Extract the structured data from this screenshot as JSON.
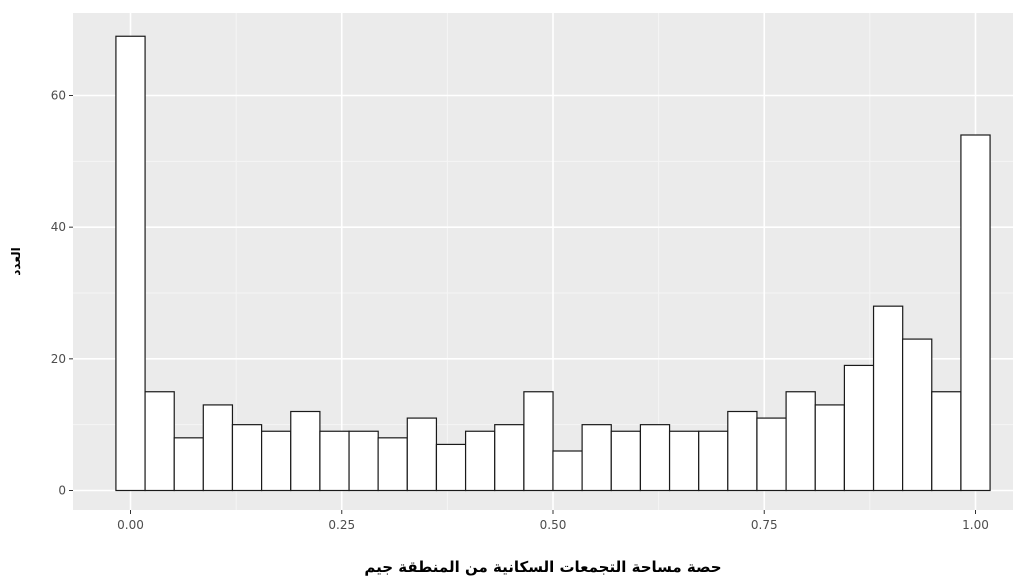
{
  "chart_data": {
    "type": "bar",
    "xlabel": "حصة مساحة التجمعات السكانية من المنطقة جيم",
    "ylabel": "العدد",
    "x_ticks": [
      "0.00",
      "0.25",
      "0.50",
      "0.75",
      "1.00"
    ],
    "y_ticks": [
      "0",
      "20",
      "40",
      "60"
    ],
    "xlim": [
      -0.025,
      1.025
    ],
    "ylim": [
      0,
      69
    ],
    "grid": true,
    "bin_width": 0.0345,
    "bin_centers": [
      0.0,
      0.0345,
      0.069,
      0.1034,
      0.1379,
      0.1724,
      0.2069,
      0.2414,
      0.2759,
      0.3103,
      0.3448,
      0.3793,
      0.4138,
      0.4483,
      0.4828,
      0.5172,
      0.5517,
      0.5862,
      0.6207,
      0.6552,
      0.6897,
      0.7241,
      0.7586,
      0.7931,
      0.8276,
      0.8621,
      0.8966,
      0.931,
      0.9655,
      1.0
    ],
    "values": [
      69,
      15,
      8,
      13,
      10,
      9,
      12,
      9,
      9,
      8,
      11,
      7,
      9,
      10,
      15,
      6,
      10,
      9,
      10,
      9,
      9,
      12,
      11,
      15,
      13,
      19,
      28,
      23,
      15,
      54
    ],
    "colors": {
      "panel": "#ebebeb",
      "grid_major": "#ffffff",
      "grid_minor": "#f5f5f5",
      "bar_fill": "#ffffff",
      "bar_stroke": "#1a1a1a"
    }
  }
}
